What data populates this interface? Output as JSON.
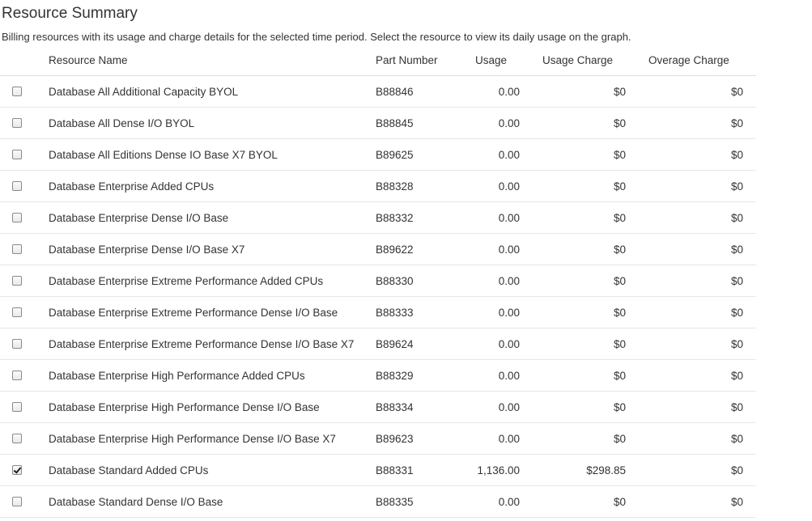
{
  "page": {
    "title": "Resource Summary",
    "subtitle": "Billing resources with its usage and charge details for the selected time period. Select the resource to view its daily usage on the graph."
  },
  "table": {
    "headers": {
      "resource_name": "Resource Name",
      "part_number": "Part Number",
      "usage": "Usage",
      "usage_charge": "Usage Charge",
      "overage_charge": "Overage Charge"
    },
    "rows": [
      {
        "checked": false,
        "name": "Database All Additional Capacity BYOL",
        "part": "B88846",
        "usage": "0.00",
        "usage_charge": "$0",
        "overage_charge": "$0"
      },
      {
        "checked": false,
        "name": "Database All Dense I/O BYOL",
        "part": "B88845",
        "usage": "0.00",
        "usage_charge": "$0",
        "overage_charge": "$0"
      },
      {
        "checked": false,
        "name": "Database All Editions Dense IO Base X7 BYOL",
        "part": "B89625",
        "usage": "0.00",
        "usage_charge": "$0",
        "overage_charge": "$0"
      },
      {
        "checked": false,
        "name": "Database Enterprise Added CPUs",
        "part": "B88328",
        "usage": "0.00",
        "usage_charge": "$0",
        "overage_charge": "$0"
      },
      {
        "checked": false,
        "name": "Database Enterprise Dense I/O Base",
        "part": "B88332",
        "usage": "0.00",
        "usage_charge": "$0",
        "overage_charge": "$0"
      },
      {
        "checked": false,
        "name": "Database Enterprise Dense I/O Base X7",
        "part": "B89622",
        "usage": "0.00",
        "usage_charge": "$0",
        "overage_charge": "$0"
      },
      {
        "checked": false,
        "name": "Database Enterprise Extreme Performance Added CPUs",
        "part": "B88330",
        "usage": "0.00",
        "usage_charge": "$0",
        "overage_charge": "$0"
      },
      {
        "checked": false,
        "name": "Database Enterprise Extreme Performance Dense I/O Base",
        "part": "B88333",
        "usage": "0.00",
        "usage_charge": "$0",
        "overage_charge": "$0"
      },
      {
        "checked": false,
        "name": "Database Enterprise Extreme Performance Dense I/O Base X7",
        "part": "B89624",
        "usage": "0.00",
        "usage_charge": "$0",
        "overage_charge": "$0"
      },
      {
        "checked": false,
        "name": "Database Enterprise High Performance Added CPUs",
        "part": "B88329",
        "usage": "0.00",
        "usage_charge": "$0",
        "overage_charge": "$0"
      },
      {
        "checked": false,
        "name": "Database Enterprise High Performance Dense I/O Base",
        "part": "B88334",
        "usage": "0.00",
        "usage_charge": "$0",
        "overage_charge": "$0"
      },
      {
        "checked": false,
        "name": "Database Enterprise High Performance Dense I/O Base X7",
        "part": "B89623",
        "usage": "0.00",
        "usage_charge": "$0",
        "overage_charge": "$0"
      },
      {
        "checked": true,
        "name": "Database Standard Added CPUs",
        "part": "B88331",
        "usage": "1,136.00",
        "usage_charge": "$298.85",
        "overage_charge": "$0"
      },
      {
        "checked": false,
        "name": "Database Standard Dense I/O Base",
        "part": "B88335",
        "usage": "0.00",
        "usage_charge": "$0",
        "overage_charge": "$0"
      }
    ]
  }
}
